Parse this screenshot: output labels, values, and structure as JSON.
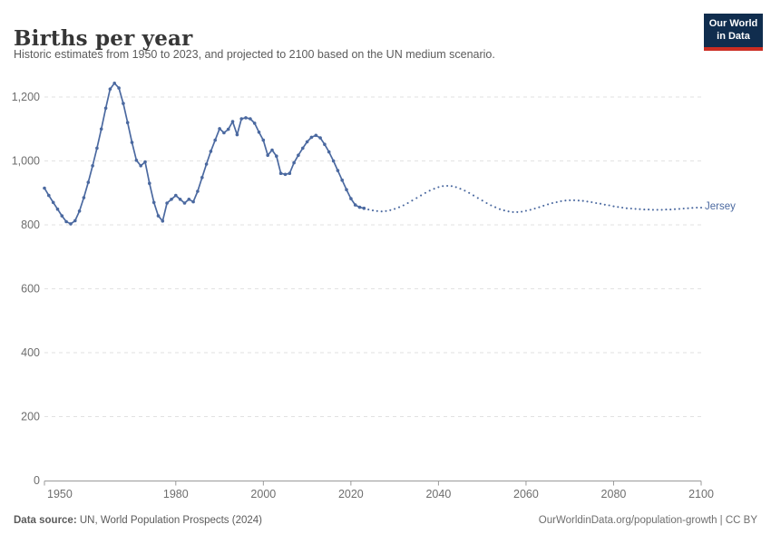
{
  "header": {
    "title": "Births per year",
    "subtitle": "Historic estimates from 1950 to 2023, and projected to 2100 based on the UN medium scenario.",
    "logo": {
      "line1": "Our World",
      "line2": "in Data",
      "bg_color": "#102d4e",
      "accent_color": "#cb2d22"
    }
  },
  "chart_data": {
    "type": "line",
    "title": "Births per year",
    "entity_label": "Jersey",
    "line_color": "#4b69a0",
    "grid": "horizontal_dashed",
    "legend_position": "end-of-line",
    "xlim": [
      1950,
      2100
    ],
    "ylim": [
      0,
      1260
    ],
    "x_ticks": [
      1950,
      1980,
      2000,
      2020,
      2040,
      2060,
      2080,
      2100
    ],
    "y_ticks": [
      0,
      200,
      400,
      600,
      800,
      1000,
      1200
    ],
    "y_tick_labels": [
      "0",
      "200",
      "400",
      "600",
      "800",
      "1,000",
      "1,200"
    ],
    "series": [
      {
        "name": "Jersey (historic estimates)",
        "style": "solid_with_markers",
        "start_year": 1950,
        "values": [
          915,
          892,
          870,
          849,
          828,
          810,
          803,
          813,
          843,
          885,
          933,
          985,
          1040,
          1100,
          1165,
          1225,
          1243,
          1228,
          1180,
          1120,
          1058,
          1002,
          985,
          997,
          930,
          870,
          828,
          812,
          868,
          880,
          892,
          880,
          868,
          880,
          872,
          905,
          948,
          990,
          1030,
          1065,
          1101,
          1088,
          1099,
          1123,
          1082,
          1132,
          1135,
          1132,
          1118,
          1090,
          1065,
          1018,
          1034,
          1015,
          961,
          958,
          961,
          994,
          1018,
          1040,
          1060,
          1074,
          1080,
          1072,
          1052,
          1028,
          1000,
          970,
          940,
          910,
          882,
          862,
          855,
          852
        ]
      },
      {
        "name": "Jersey (UN medium projection)",
        "style": "dotted",
        "start_year": 2024,
        "values": [
          848,
          845,
          843,
          842,
          843,
          846,
          850,
          855,
          861,
          868,
          876,
          884,
          892,
          900,
          907,
          913,
          918,
          921,
          922,
          921,
          918,
          913,
          907,
          900,
          892,
          884,
          876,
          868,
          861,
          855,
          849,
          845,
          842,
          840,
          840,
          841,
          844,
          847,
          851,
          855,
          860,
          864,
          868,
          871,
          874,
          876,
          877,
          877,
          876,
          875,
          873,
          871,
          868,
          866,
          863,
          861,
          858,
          856,
          854,
          852,
          851,
          850,
          849,
          848,
          848,
          847,
          847,
          847,
          848,
          848,
          849,
          850,
          851,
          852,
          853,
          854,
          854
        ]
      }
    ]
  },
  "footer": {
    "datasource_label": "Data source:",
    "datasource_value": " UN, World Population Prospects (2024)",
    "credit": "OurWorldinData.org/population-growth | CC BY"
  }
}
